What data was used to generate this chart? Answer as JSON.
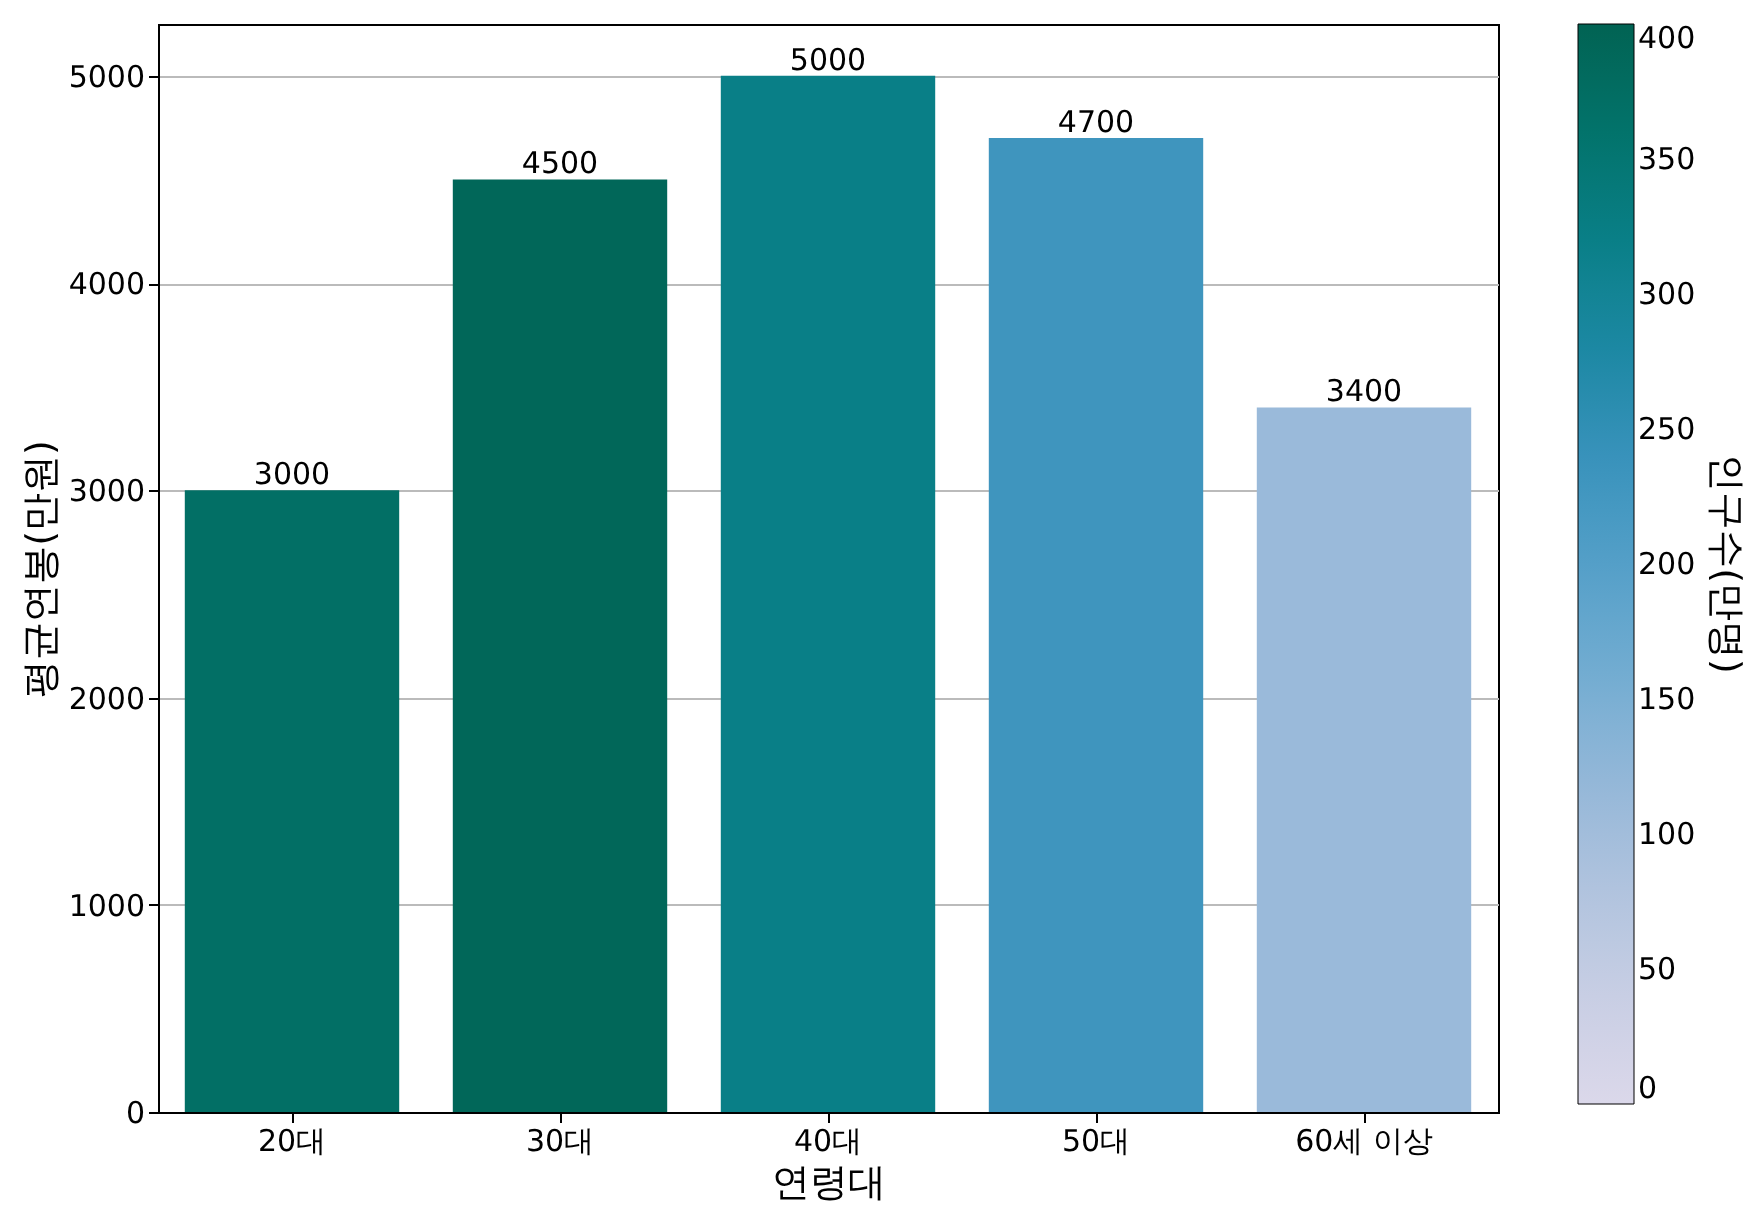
{
  "chart_data": {
    "type": "bar",
    "xlabel": "연령대",
    "ylabel": "평균연봉(만원)",
    "clabel": "인구수(만명)",
    "categories": [
      "20대",
      "30대",
      "40대",
      "50대",
      "60세 이상"
    ],
    "values": [
      3000,
      4500,
      5000,
      4700,
      3400
    ],
    "cvalues": [
      370,
      390,
      320,
      230,
      110
    ],
    "clim": [
      0,
      400
    ],
    "cticks": [
      0,
      50,
      100,
      150,
      200,
      250,
      300,
      350,
      400
    ],
    "ylim": [
      0,
      5250
    ],
    "yticks": [
      0,
      1000,
      2000,
      3000,
      4000,
      5000
    ],
    "grid": "y",
    "data_labels": true
  }
}
